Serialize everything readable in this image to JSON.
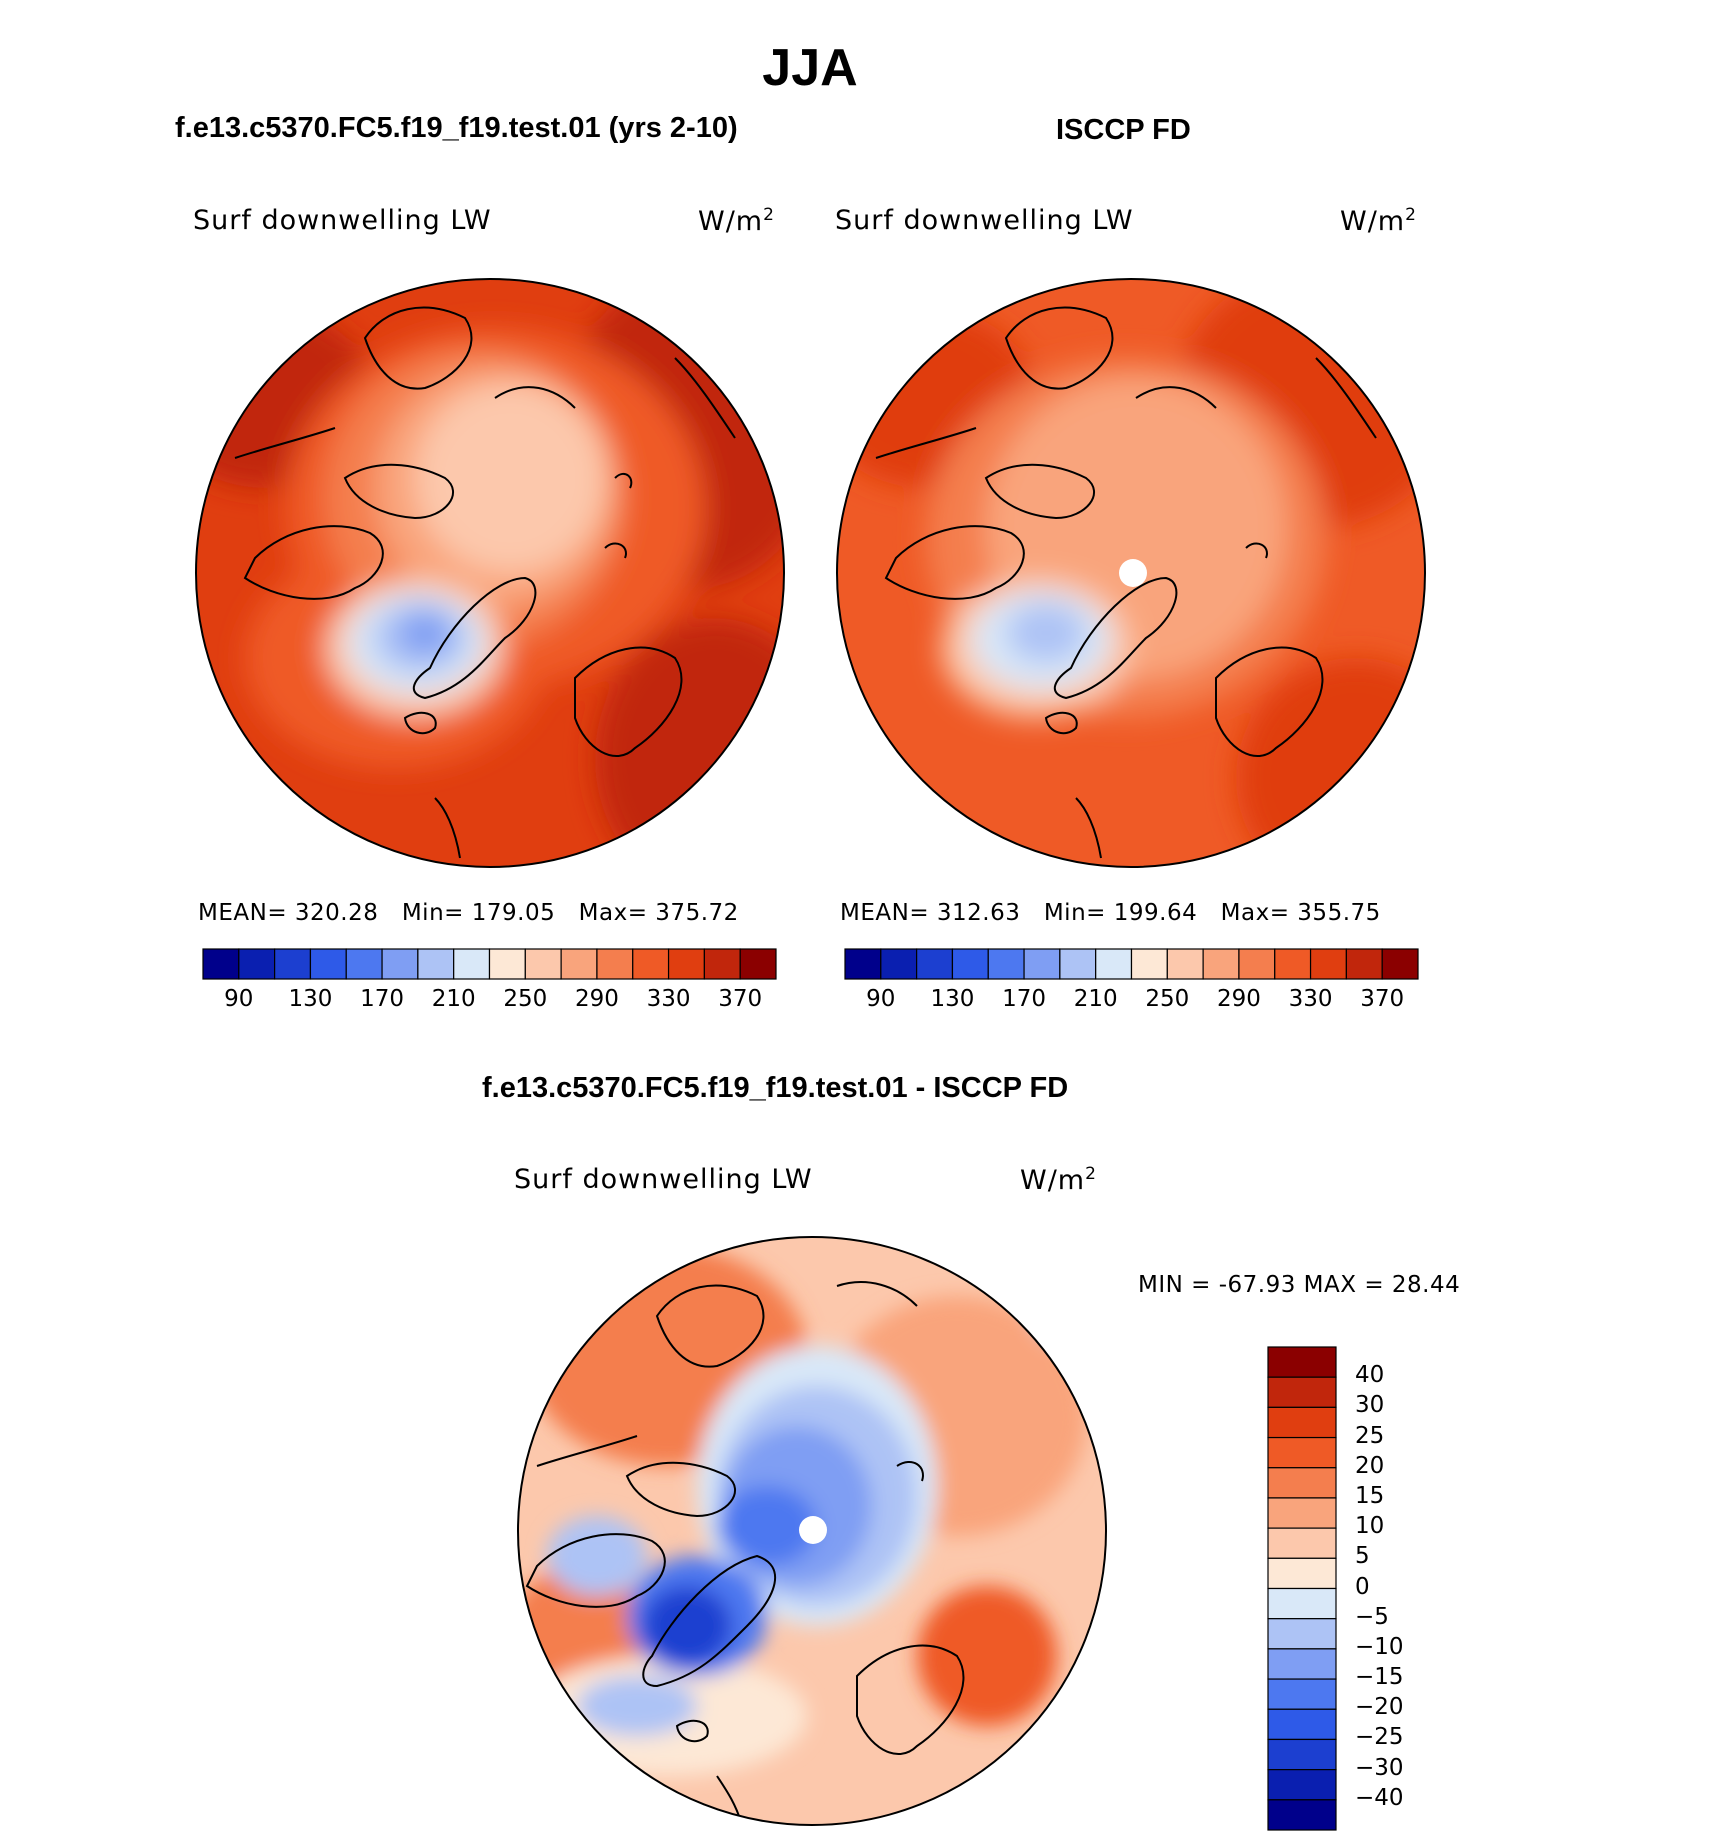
{
  "title": "JJA",
  "panels": [
    {
      "title": "f.e13.c5370.FC5.f19_f19.test.01 (yrs 2-10)",
      "variable": "Surf downwelling LW",
      "units": "W/m",
      "units_sup": "2",
      "stats": {
        "mean_label": "MEAN=",
        "mean": "320.28",
        "min_label": "Min=",
        "min": "179.05",
        "max_label": "Max=",
        "max": "375.72"
      }
    },
    {
      "title": "ISCCP FD",
      "variable": "Surf downwelling LW",
      "units": "W/m",
      "units_sup": "2",
      "stats": {
        "mean_label": "MEAN=",
        "mean": "312.63",
        "min_label": "Min=",
        "min": "199.64",
        "max_label": "Max=",
        "max": "355.75"
      }
    },
    {
      "title": "f.e13.c5370.FC5.f19_f19.test.01 - ISCCP FD",
      "variable": "Surf downwelling LW",
      "units": "W/m",
      "units_sup": "2",
      "stats": {
        "text": "MIN = -67.93 MAX =   28.44"
      }
    }
  ],
  "colorbar_abs": {
    "colors": [
      "#00008b",
      "#0a1fb0",
      "#1c3fd0",
      "#2e5ae8",
      "#4d78f0",
      "#7f9ef3",
      "#adc3f5",
      "#d9e8f8",
      "#fde8d6",
      "#fcc8ac",
      "#f9a47c",
      "#f47e4e",
      "#ef5a26",
      "#e03e10",
      "#c1260c",
      "#8b0000"
    ],
    "tick_labels": [
      "90",
      "130",
      "170",
      "210",
      "250",
      "290",
      "330",
      "370"
    ]
  },
  "colorbar_diff": {
    "colors": [
      "#00008b",
      "#0a1fb0",
      "#1c3fd0",
      "#2e5ae8",
      "#4d78f0",
      "#7f9ef3",
      "#adc3f5",
      "#d9e8f8",
      "#fde8d6",
      "#fcc8ac",
      "#f9a47c",
      "#f47e4e",
      "#ef5a26",
      "#e03e10",
      "#c1260c",
      "#8b0000"
    ],
    "tick_labels": [
      "40",
      "30",
      "25",
      "20",
      "15",
      "10",
      "5",
      "0",
      "−5",
      "−10",
      "−15",
      "−20",
      "−25",
      "−30",
      "−40"
    ]
  }
}
